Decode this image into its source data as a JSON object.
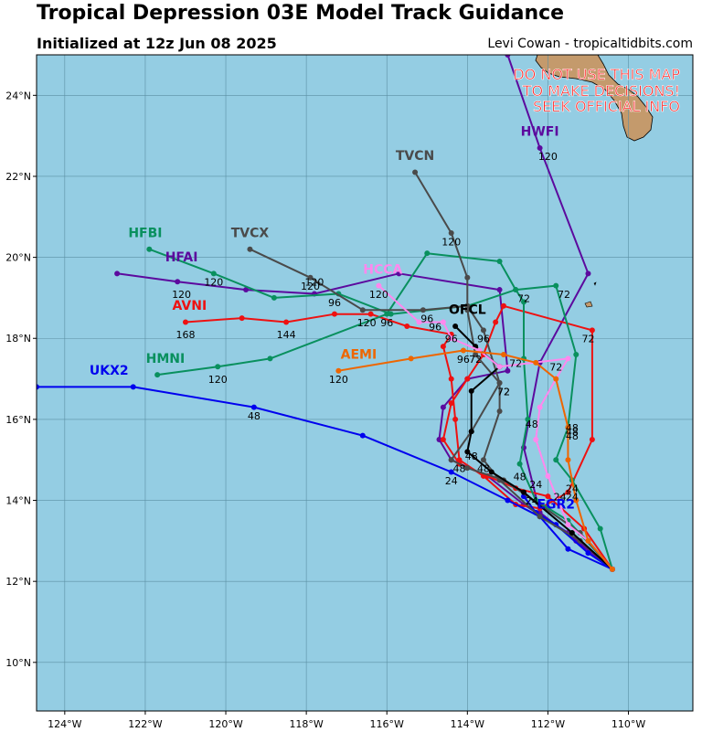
{
  "title": "Tropical Depression 03E Model Track Guidance",
  "subtitle": "Initialized at 12z Jun 08 2025",
  "credit": "Levi Cowan - tropicaltidbits.com",
  "warning": [
    "DO NOT USE THIS MAP",
    "TO MAKE DECISIONS!",
    "SEEK OFFICIAL INFO"
  ],
  "colors": {
    "ocean": "#94cde3",
    "land": "#c49a6c",
    "grid": "#5b8fa3",
    "warning": "#ff2020"
  },
  "map": {
    "lon_range": [
      -124.7,
      -108.4
    ],
    "lat_range": [
      8.8,
      25.0
    ],
    "lon_ticks": [
      {
        "v": -124,
        "t": "124°W"
      },
      {
        "v": -122,
        "t": "122°W"
      },
      {
        "v": -120,
        "t": "120°W"
      },
      {
        "v": -118,
        "t": "118°W"
      },
      {
        "v": -116,
        "t": "116°W"
      },
      {
        "v": -114,
        "t": "114°W"
      },
      {
        "v": -112,
        "t": "112°W"
      },
      {
        "v": -110,
        "t": "110°W"
      }
    ],
    "lat_ticks": [
      {
        "v": 10,
        "t": "10°N"
      },
      {
        "v": 12,
        "t": "12°N"
      },
      {
        "v": 14,
        "t": "14°N"
      },
      {
        "v": 16,
        "t": "16°N"
      },
      {
        "v": 18,
        "t": "18°N"
      },
      {
        "v": 20,
        "t": "20°N"
      },
      {
        "v": 22,
        "t": "22°N"
      },
      {
        "v": 24,
        "t": "24°N"
      }
    ]
  },
  "chart_data": {
    "type": "map",
    "tracks": [
      {
        "name": "HWFI",
        "color": "#5c0a9e",
        "points": [
          [
            -110.4,
            12.3
          ],
          [
            -111.3,
            13.0
          ],
          [
            -112.2,
            13.7
          ],
          [
            -112.6,
            15.3
          ],
          [
            -112.2,
            17.4
          ],
          [
            -111.0,
            19.6
          ],
          [
            -112.2,
            22.7
          ],
          [
            -113.0,
            25.0
          ]
        ],
        "labels": [
          [
            "120",
            -112.0,
            22.4
          ]
        ]
      },
      {
        "name": "HFAI",
        "color": "#5c0a9e",
        "points": [
          [
            -110.4,
            12.3
          ],
          [
            -111.5,
            13.2
          ],
          [
            -112.6,
            13.9
          ],
          [
            -113.5,
            14.6
          ],
          [
            -114.4,
            15.0
          ],
          [
            -114.7,
            15.5
          ],
          [
            -114.6,
            16.3
          ],
          [
            -114.0,
            17.0
          ],
          [
            -113.0,
            17.2
          ],
          [
            -113.2,
            19.2
          ],
          [
            -115.7,
            19.6
          ],
          [
            -117.8,
            19.1
          ],
          [
            -119.5,
            19.2
          ],
          [
            -121.2,
            19.4
          ],
          [
            -122.7,
            19.6
          ]
        ],
        "labels": [
          [
            "120",
            -121.1,
            19.0
          ],
          [
            "120",
            -117.8,
            19.3
          ]
        ]
      },
      {
        "name": "AVNI",
        "color": "#ee1111",
        "points": [
          [
            -110.4,
            12.3
          ],
          [
            -111.1,
            13.3
          ],
          [
            -112.0,
            14.1
          ],
          [
            -112.8,
            14.3
          ],
          [
            -113.5,
            14.6
          ],
          [
            -114.2,
            14.9
          ],
          [
            -114.6,
            15.5
          ],
          [
            -114.4,
            16.4
          ],
          [
            -114.0,
            17.0
          ],
          [
            -113.6,
            17.6
          ],
          [
            -113.3,
            18.4
          ],
          [
            -113.1,
            18.8
          ],
          [
            -110.9,
            18.2
          ],
          [
            -110.9,
            15.5
          ],
          [
            -111.5,
            14.2
          ],
          [
            -112.2,
            13.8
          ],
          [
            -112.8,
            13.9
          ],
          [
            -113.6,
            14.6
          ],
          [
            -114.2,
            15.0
          ],
          [
            -114.3,
            16.0
          ],
          [
            -114.4,
            17.0
          ],
          [
            -114.6,
            17.8
          ],
          [
            -114.4,
            18.1
          ],
          [
            -115.5,
            18.3
          ],
          [
            -116.4,
            18.6
          ],
          [
            -117.3,
            18.6
          ],
          [
            -118.5,
            18.4
          ],
          [
            -119.6,
            18.5
          ],
          [
            -121.0,
            18.4
          ]
        ],
        "labels": [
          [
            "168",
            -121.0,
            18.0
          ],
          [
            "144",
            -118.5,
            18.0
          ],
          [
            "120",
            -116.5,
            18.3
          ],
          [
            "96",
            -114.4,
            17.9
          ],
          [
            "72",
            -111.0,
            17.9
          ],
          [
            "48",
            -111.4,
            15.7
          ],
          [
            "24",
            -111.7,
            14.0
          ]
        ]
      },
      {
        "name": "HMNI",
        "color": "#09905e",
        "points": [
          [
            -110.4,
            12.3
          ],
          [
            -110.7,
            13.3
          ],
          [
            -111.4,
            14.5
          ],
          [
            -111.8,
            15.0
          ],
          [
            -111.5,
            15.8
          ],
          [
            -111.3,
            17.6
          ],
          [
            -111.8,
            19.3
          ],
          [
            -112.8,
            19.2
          ],
          [
            -113.2,
            19.9
          ],
          [
            -115.0,
            20.1
          ],
          [
            -116.0,
            18.6
          ],
          [
            -118.9,
            17.5
          ],
          [
            -120.2,
            17.3
          ],
          [
            -121.7,
            17.1
          ]
        ],
        "labels": [
          [
            "120",
            -120.2,
            16.9
          ],
          [
            "96",
            -116.0,
            18.3
          ],
          [
            "72",
            -111.6,
            19.0
          ],
          [
            "48",
            -111.4,
            15.5
          ],
          [
            "24",
            -111.4,
            14.2
          ]
        ]
      },
      {
        "name": "HFBI",
        "color": "#09905e",
        "points": [
          [
            -110.4,
            12.3
          ],
          [
            -111.5,
            13.5
          ],
          [
            -112.3,
            14.0
          ],
          [
            -112.7,
            14.9
          ],
          [
            -112.5,
            16.0
          ],
          [
            -112.6,
            17.5
          ],
          [
            -112.6,
            18.9
          ],
          [
            -112.8,
            19.2
          ],
          [
            -114.0,
            18.8
          ],
          [
            -115.9,
            18.6
          ],
          [
            -117.2,
            19.1
          ],
          [
            -118.8,
            19.0
          ],
          [
            -120.3,
            19.6
          ],
          [
            -121.9,
            20.2
          ]
        ],
        "labels": [
          [
            "120",
            -120.3,
            19.3
          ],
          [
            "96",
            -117.3,
            18.8
          ],
          [
            "72",
            -112.6,
            18.9
          ],
          [
            "48",
            -112.7,
            14.5
          ],
          [
            "24",
            -112.4,
            13.9
          ]
        ]
      },
      {
        "name": "UKX2",
        "color": "#0000ee",
        "points": [
          [
            -110.4,
            12.3
          ],
          [
            -111.5,
            12.8
          ],
          [
            -112.2,
            13.6
          ],
          [
            -113.0,
            14.0
          ],
          [
            -114.4,
            14.7
          ],
          [
            -116.6,
            15.6
          ],
          [
            -119.3,
            16.3
          ],
          [
            -122.3,
            16.8
          ],
          [
            -124.7,
            16.8
          ]
        ],
        "labels": [
          [
            "48",
            -119.3,
            16.0
          ],
          [
            "24",
            -114.4,
            14.4
          ]
        ]
      },
      {
        "name": "EGR2",
        "color": "#0000ee",
        "points": [
          [
            -110.4,
            12.3
          ],
          [
            -111.0,
            12.7
          ],
          [
            -111.8,
            13.4
          ],
          [
            -112.3,
            13.7
          ],
          [
            -112.6,
            14.1
          ]
        ],
        "labels": []
      },
      {
        "name": "TVCN",
        "color": "#4a4a4a",
        "points": [
          [
            -110.4,
            12.3
          ],
          [
            -111.2,
            13.0
          ],
          [
            -112.2,
            13.6
          ],
          [
            -113.2,
            14.5
          ],
          [
            -113.6,
            15.0
          ],
          [
            -113.2,
            16.2
          ],
          [
            -113.2,
            16.9
          ],
          [
            -113.8,
            17.6
          ],
          [
            -114.0,
            18.7
          ],
          [
            -114.0,
            19.5
          ],
          [
            -114.4,
            20.6
          ],
          [
            -115.3,
            22.1
          ]
        ],
        "labels": [
          [
            "120",
            -114.4,
            20.3
          ],
          [
            "96",
            -113.6,
            17.9
          ],
          [
            "72",
            -113.1,
            16.6
          ],
          [
            "48",
            -113.6,
            14.7
          ]
        ]
      },
      {
        "name": "TVCX",
        "color": "#4a4a4a",
        "points": [
          [
            -110.4,
            12.3
          ],
          [
            -111.2,
            13.2
          ],
          [
            -112.2,
            13.9
          ],
          [
            -113.1,
            14.5
          ],
          [
            -114.0,
            14.8
          ],
          [
            -114.4,
            15.0
          ],
          [
            -113.9,
            15.7
          ],
          [
            -113.2,
            16.9
          ],
          [
            -113.6,
            18.2
          ],
          [
            -114.0,
            18.8
          ],
          [
            -115.1,
            18.7
          ],
          [
            -116.6,
            18.7
          ],
          [
            -117.9,
            19.5
          ],
          [
            -119.4,
            20.2
          ]
        ],
        "labels": [
          [
            "120",
            -117.9,
            19.2
          ],
          [
            "96",
            -115.0,
            18.4
          ],
          [
            "72",
            -113.1,
            16.6
          ],
          [
            "48",
            -114.2,
            14.7
          ]
        ]
      },
      {
        "name": "OFCL",
        "color": "#000000",
        "points": [
          [
            -110.4,
            12.3
          ],
          [
            -111.4,
            13.2
          ],
          [
            -112.6,
            14.2
          ],
          [
            -113.4,
            14.7
          ],
          [
            -114.0,
            15.2
          ],
          [
            -113.9,
            15.7
          ],
          [
            -113.9,
            16.7
          ],
          [
            -113.2,
            17.3
          ],
          [
            -113.8,
            17.8
          ],
          [
            -114.3,
            18.3
          ]
        ],
        "labels": [
          [
            "48",
            -113.9,
            15.0
          ],
          [
            "72",
            -113.8,
            17.4
          ]
        ]
      },
      {
        "name": "HCCA",
        "color": "#ff88ee",
        "points": [
          [
            -110.4,
            12.3
          ],
          [
            -111.0,
            13.0
          ],
          [
            -111.5,
            13.4
          ],
          [
            -112.0,
            14.6
          ],
          [
            -112.3,
            15.5
          ],
          [
            -112.2,
            16.3
          ],
          [
            -111.8,
            17.0
          ],
          [
            -111.5,
            17.5
          ],
          [
            -113.2,
            17.3
          ],
          [
            -113.7,
            17.7
          ],
          [
            -114.4,
            18.0
          ],
          [
            -114.6,
            18.4
          ],
          [
            -115.2,
            18.4
          ],
          [
            -116.2,
            19.3
          ]
        ],
        "labels": [
          [
            "120",
            -116.2,
            19.0
          ],
          [
            "96",
            -114.8,
            18.2
          ],
          [
            "72",
            -111.8,
            17.2
          ],
          [
            "48",
            -112.4,
            15.8
          ],
          [
            "24",
            -112.3,
            14.3
          ]
        ]
      },
      {
        "name": "AEMI",
        "color": "#ee6600",
        "points": [
          [
            -110.4,
            12.3
          ],
          [
            -111.0,
            13.0
          ],
          [
            -111.3,
            14.0
          ],
          [
            -111.5,
            15.0
          ],
          [
            -111.5,
            15.8
          ],
          [
            -111.8,
            17.0
          ],
          [
            -112.3,
            17.4
          ],
          [
            -113.1,
            17.6
          ],
          [
            -114.1,
            17.7
          ],
          [
            -115.4,
            17.5
          ],
          [
            -117.2,
            17.2
          ]
        ],
        "labels": [
          [
            "120",
            -117.2,
            16.9
          ],
          [
            "96",
            -114.1,
            17.4
          ],
          [
            "72",
            -112.8,
            17.3
          ],
          [
            "48",
            -111.4,
            15.6
          ],
          [
            "24",
            -111.4,
            14.0
          ]
        ]
      }
    ],
    "name_labels": [
      {
        "name": "HWFI",
        "x": -112.2,
        "y": 23.0,
        "color": "#5c0a9e"
      },
      {
        "name": "TVCN",
        "x": -115.3,
        "y": 22.4,
        "color": "#4a4a4a"
      },
      {
        "name": "HFBI",
        "x": -122.0,
        "y": 20.5,
        "color": "#09905e"
      },
      {
        "name": "TVCX",
        "x": -119.4,
        "y": 20.5,
        "color": "#4a4a4a"
      },
      {
        "name": "HFAI",
        "x": -121.1,
        "y": 19.9,
        "color": "#5c0a9e"
      },
      {
        "name": "HCCA",
        "x": -116.1,
        "y": 19.6,
        "color": "#ff88ee"
      },
      {
        "name": "AVNI",
        "x": -120.9,
        "y": 18.7,
        "color": "#ee1111"
      },
      {
        "name": "OFCL",
        "x": -114.0,
        "y": 18.6,
        "color": "#000000"
      },
      {
        "name": "AEMI",
        "x": -116.7,
        "y": 17.5,
        "color": "#ee6600"
      },
      {
        "name": "HMNI",
        "x": -121.5,
        "y": 17.4,
        "color": "#09905e"
      },
      {
        "name": "UKX2",
        "x": -122.9,
        "y": 17.1,
        "color": "#0000ee"
      },
      {
        "name": "EGR2",
        "x": -111.8,
        "y": 13.8,
        "color": "#0000ee"
      }
    ]
  }
}
